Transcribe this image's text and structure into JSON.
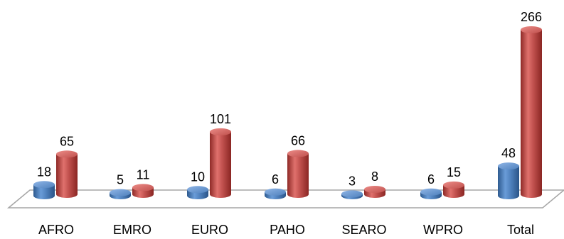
{
  "chart_data": {
    "type": "bar",
    "title": "",
    "xlabel": "",
    "ylabel": "",
    "categories": [
      "AFRO",
      "EMRO",
      "EURO",
      "PAHO",
      "SEARO",
      "WPRO",
      "Total"
    ],
    "series": [
      {
        "values": [
          18,
          5,
          10,
          6,
          3,
          6,
          48
        ],
        "color": "#4F81BD"
      },
      {
        "values": [
          65,
          11,
          101,
          66,
          8,
          15,
          266
        ],
        "color": "#C0504D"
      }
    ],
    "ylim": [
      0,
      266
    ],
    "grid": false,
    "legend": "none",
    "style": "3d-cylinder"
  }
}
